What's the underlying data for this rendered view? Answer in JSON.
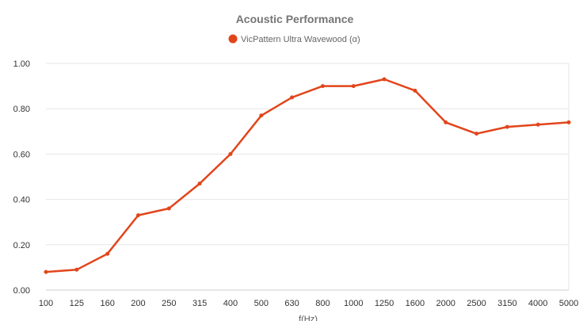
{
  "chart_data": {
    "type": "line",
    "title": "Acoustic Performance",
    "xlabel": "f(Hz)",
    "ylabel": "",
    "categories": [
      "100",
      "125",
      "160",
      "200",
      "250",
      "315",
      "400",
      "500",
      "630",
      "800",
      "1000",
      "1250",
      "1600",
      "2000",
      "2500",
      "3150",
      "4000",
      "5000"
    ],
    "y_ticks": [
      "0.00",
      "0.20",
      "0.40",
      "0.60",
      "0.80",
      "1.00"
    ],
    "ylim": [
      0,
      1
    ],
    "grid": true,
    "legend_position": "top",
    "series": [
      {
        "name": "VicPattern Ultra Wavewood (α)",
        "color": "#e2451b",
        "values": [
          0.08,
          0.09,
          0.16,
          0.33,
          0.36,
          0.47,
          0.6,
          0.77,
          0.85,
          0.9,
          0.9,
          0.93,
          0.88,
          0.74,
          0.69,
          0.72,
          0.73,
          0.74
        ]
      }
    ]
  }
}
